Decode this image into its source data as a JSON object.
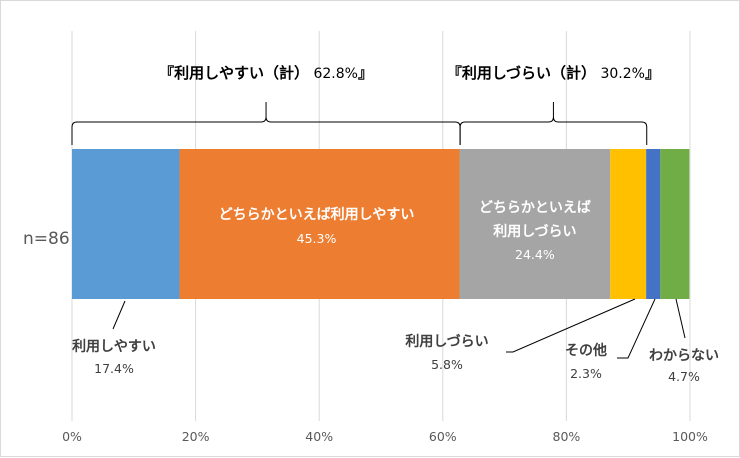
{
  "chart_data": {
    "type": "bar",
    "orientation": "horizontal-stacked-100",
    "categories": [
      "n=86"
    ],
    "series": [
      {
        "name": "利用しやすい",
        "values": [
          17.4
        ],
        "color": "#5b9bd5",
        "label": "利用しやすい",
        "pct_label": "17.4%"
      },
      {
        "name": "どちらかといえば利用しやすい",
        "values": [
          45.3
        ],
        "color": "#ed7d31",
        "label": "どちらかといえば利用しやすい",
        "pct_label": "45.3%"
      },
      {
        "name": "どちらかといえば利用しづらい",
        "values": [
          24.4
        ],
        "color": "#a5a5a5",
        "label_lines": [
          "どちらかといえば",
          "利用しづらい"
        ],
        "pct_label": "24.4%"
      },
      {
        "name": "利用しづらい",
        "values": [
          5.8
        ],
        "color": "#ffc000",
        "label": "利用しづらい",
        "pct_label": "5.8%"
      },
      {
        "name": "その他",
        "values": [
          2.3
        ],
        "color": "#4472c4",
        "label": "その他",
        "pct_label": "2.3%"
      },
      {
        "name": "わからない",
        "values": [
          4.7
        ],
        "color": "#70ad47",
        "label": "わからない",
        "pct_label": "4.7%"
      }
    ],
    "xlim": [
      0,
      100
    ],
    "xticks": [
      "0%",
      "20%",
      "40%",
      "60%",
      "80%",
      "100%"
    ],
    "xtick_values": [
      0,
      20,
      40,
      60,
      80,
      100
    ],
    "grid": true,
    "brackets": [
      {
        "label": "『利用しやすい（計）",
        "pct": "62.8%",
        "close": "』",
        "from": 0,
        "to": 62.8
      },
      {
        "label": "『利用しづらい（計）",
        "pct": "30.2%",
        "close": "』",
        "from": 62.8,
        "to": 93.0
      }
    ]
  },
  "colors": {
    "gridline": "#d9d9d9",
    "leader": "#000000"
  }
}
